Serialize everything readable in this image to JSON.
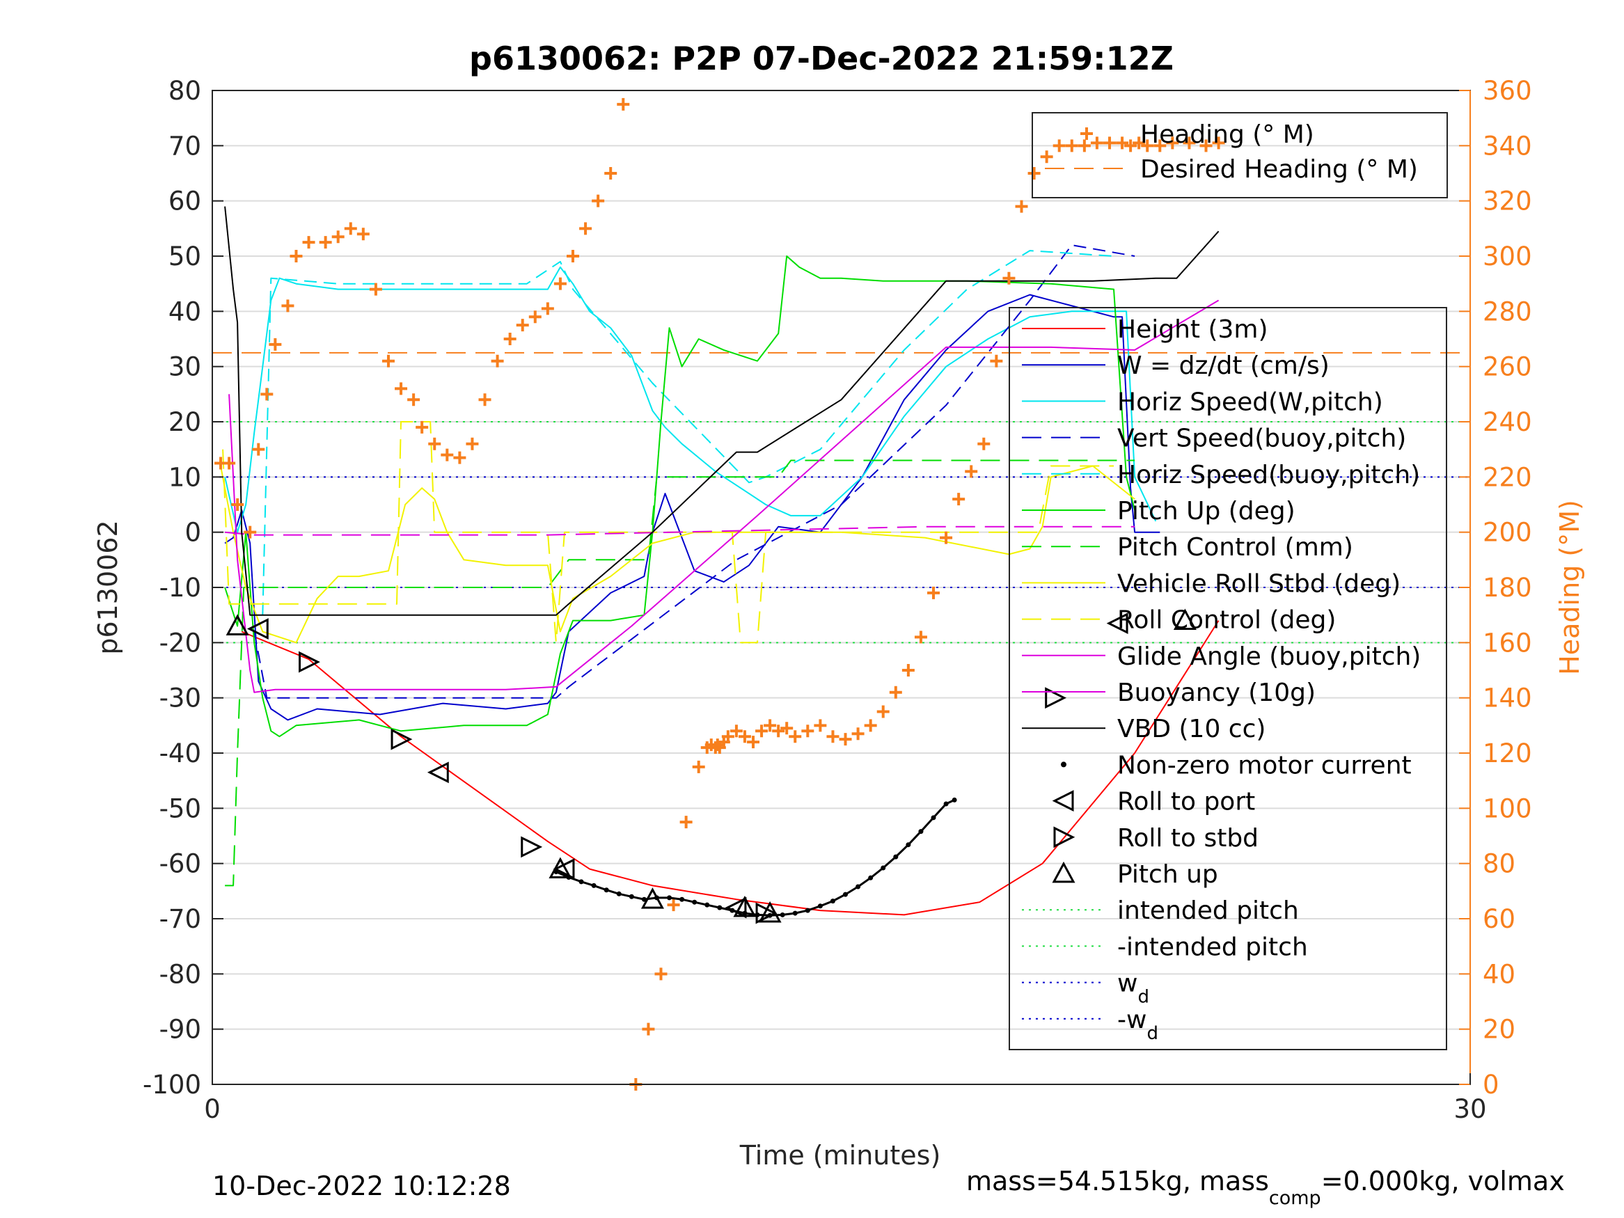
{
  "chart_data": {
    "type": "line",
    "title": "p6130062: P2P 07-Dec-2022 21:59:12Z",
    "xlabel": "Time (minutes)",
    "ylabel": "p6130062",
    "ylabel_right": "Heading (°M)",
    "xlim": [
      0,
      30
    ],
    "ylim": [
      -100,
      80
    ],
    "ylim_right": [
      0,
      360
    ],
    "x_ticks": [
      "0",
      "30"
    ],
    "y_ticks": [
      "80",
      "70",
      "60",
      "50",
      "40",
      "30",
      "20",
      "10",
      "0",
      "-10",
      "-20",
      "-30",
      "-40",
      "-50",
      "-60",
      "-70",
      "-80",
      "-90",
      "-100"
    ],
    "y_ticks_right": [
      "360",
      "340",
      "320",
      "300",
      "280",
      "260",
      "240",
      "220",
      "200",
      "180",
      "160",
      "140",
      "120",
      "100",
      "80",
      "60",
      "40",
      "20",
      "0"
    ],
    "grid": true,
    "footer_left": "10-Dec-2022 10:12:28",
    "footer_right": {
      "prefix": "mass=54.515kg, mass",
      "sub": "comp",
      "suffix": "=0.000kg, volmax"
    },
    "legend_top": [
      {
        "label": "Heading (° M)",
        "color": "#f77f1d",
        "style": "plus"
      },
      {
        "label": "Desired Heading (° M)",
        "color": "#f77f1d",
        "style": "dash"
      }
    ],
    "legend_main": [
      {
        "label": "Height (3m)",
        "color": "#ff0000",
        "style": "solid"
      },
      {
        "label": "W = dz/dt (cm/s)",
        "color": "#0000cc",
        "style": "solid"
      },
      {
        "label": "Horiz Speed(W,pitch)",
        "color": "#00e5ee",
        "style": "solid"
      },
      {
        "label": "Vert Speed(buoy,pitch)",
        "color": "#0000cc",
        "style": "dash"
      },
      {
        "label": "Horiz Speed(buoy,pitch)",
        "color": "#00e5ee",
        "style": "dash"
      },
      {
        "label": "Pitch Up (deg)",
        "color": "#00dd00",
        "style": "solid"
      },
      {
        "label": "Pitch Control (mm)",
        "color": "#00dd00",
        "style": "dash"
      },
      {
        "label": "Vehicle Roll Stbd (deg)",
        "color": "#f2f200",
        "style": "solid"
      },
      {
        "label": "Roll Control (deg)",
        "color": "#f2f200",
        "style": "dash"
      },
      {
        "label": "Glide Angle (buoy,pitch)",
        "color": "#dd00dd",
        "style": "solid"
      },
      {
        "label": "Buoyancy (10g)",
        "color": "#dd00dd",
        "style": "solid"
      },
      {
        "label": "VBD (10 cc)",
        "color": "#000000",
        "style": "solid"
      },
      {
        "label": "Non-zero motor current",
        "color": "#000000",
        "style": "dot"
      },
      {
        "label": "Roll to port",
        "color": "#000000",
        "style": "tri-left"
      },
      {
        "label": "Roll to stbd",
        "color": "#000000",
        "style": "tri-right"
      },
      {
        "label": "Pitch up",
        "color": "#000000",
        "style": "tri-up"
      },
      {
        "label": "intended pitch",
        "color": "#22dd44",
        "style": "dotted"
      },
      {
        "label": "-intended pitch",
        "color": "#22dd44",
        "style": "dotted"
      },
      {
        "label": "w",
        "sub": "d",
        "color": "#0000cc",
        "style": "dotted"
      },
      {
        "label": "-w",
        "sub": "d",
        "color": "#0000cc",
        "style": "dotted"
      }
    ],
    "reference_lines": [
      {
        "name": "intended pitch",
        "y": 20,
        "color": "#22dd44"
      },
      {
        "name": "-intended pitch",
        "y": -20,
        "color": "#22dd44"
      },
      {
        "name": "w_d",
        "y": 10,
        "color": "#0000cc"
      },
      {
        "name": "-w_d",
        "y": -10,
        "color": "#0000cc"
      }
    ],
    "series": [
      {
        "name": "Height (3m)",
        "color": "#ff0000",
        "dash": "",
        "x": [
          0.7,
          2.3,
          4.5,
          8.0,
          9.0,
          10.5,
          12.5,
          14.5,
          16.5,
          18.3,
          19.8,
          22.0,
          23.0,
          24.0
        ],
        "y": [
          -18,
          -23,
          -37,
          -56,
          -61,
          -64,
          -66.5,
          -68.5,
          -69.3,
          -67,
          -60,
          -40,
          -28,
          -16
        ]
      },
      {
        "name": "W = dz/dt (cm/s)",
        "color": "#0000cc",
        "dash": "",
        "x": [
          0.3,
          0.5,
          0.7,
          0.9,
          1.1,
          1.4,
          1.8,
          2.5,
          4.0,
          5.5,
          7.0,
          8.0,
          8.2,
          8.5,
          9.5,
          10.3,
          10.5,
          10.8,
          11.5,
          12.2,
          12.8,
          13.5,
          14.5,
          15.5,
          16.5,
          17.5,
          18.5,
          19.5,
          20.5,
          21.5,
          21.7,
          21.9,
          22.0,
          22.3,
          22.6
        ],
        "y": [
          -2,
          -1,
          4,
          -2,
          -27,
          -32,
          -34,
          -32,
          -33,
          -31,
          -32,
          -31,
          -29,
          -18,
          -11,
          -8,
          0,
          7,
          -7,
          -9,
          -6,
          1,
          0,
          10,
          24,
          33,
          40,
          43,
          41,
          39,
          39,
          8,
          0,
          0,
          0
        ]
      },
      {
        "name": "Horiz Speed(W,pitch)",
        "color": "#00e5ee",
        "dash": "",
        "x": [
          0.3,
          0.6,
          0.8,
          1.0,
          1.2,
          1.4,
          1.6,
          2.0,
          3.0,
          4.0,
          5.0,
          6.0,
          7.0,
          8.0,
          8.3,
          8.6,
          9.0,
          9.5,
          10.0,
          10.5,
          10.8,
          11.2,
          12.0,
          12.8,
          13.2,
          13.8,
          14.5,
          15.5,
          16.5,
          17.5,
          18.5,
          19.5,
          20.5,
          21.5,
          21.8,
          22.0,
          22.5
        ],
        "y": [
          10,
          0,
          5,
          18,
          30,
          42,
          46,
          45,
          44,
          44,
          44,
          44,
          44,
          44,
          48,
          45,
          40,
          37,
          32,
          22,
          19,
          16,
          11,
          7,
          5,
          3,
          3,
          10,
          21,
          30,
          35,
          39,
          40,
          40,
          40,
          10,
          2
        ]
      },
      {
        "name": "Vert Speed(buoy,pitch)",
        "color": "#0000cc",
        "dash": "18 10",
        "x": [
          1.0,
          1.3,
          8.2,
          8.5,
          12.5,
          15.0,
          17.5,
          19.5,
          20.5,
          22.0
        ],
        "y": [
          -18,
          -30,
          -30,
          -28,
          -5,
          5,
          23,
          42,
          52,
          50
        ]
      },
      {
        "name": "Horiz Speed(buoy,pitch)",
        "color": "#00e5ee",
        "dash": "18 10",
        "x": [
          1.2,
          1.4,
          3.0,
          7.5,
          8.3,
          8.6,
          10.5,
          12.8,
          13.2,
          14.5,
          16.5,
          18.0,
          19.5,
          21.5
        ],
        "y": [
          -15,
          46,
          45,
          45,
          49,
          44,
          27,
          9,
          10,
          15,
          33,
          44,
          51,
          50
        ]
      },
      {
        "name": "Pitch Up (deg)",
        "color": "#00dd00",
        "dash": "",
        "x": [
          0.3,
          0.6,
          0.8,
          1.0,
          1.2,
          1.4,
          1.6,
          2.0,
          3.5,
          4.5,
          6.0,
          7.5,
          8.0,
          8.3,
          8.6,
          9.5,
          10.3,
          10.5,
          10.7,
          10.9,
          11.2,
          11.6,
          12.2,
          13.0,
          13.5,
          13.7,
          14.0,
          14.5,
          15.0,
          16.0,
          18.0,
          20.0,
          21.5,
          21.8,
          22.0
        ],
        "y": [
          -10,
          -17,
          0,
          -20,
          -30,
          -36,
          -37,
          -35,
          -34,
          -36,
          -35,
          -35,
          -33,
          -22,
          -16,
          -16,
          -15,
          0,
          20,
          37,
          30,
          35,
          33,
          31,
          36,
          50,
          48,
          46,
          46,
          45.5,
          45.5,
          45,
          44,
          10,
          4
        ]
      },
      {
        "name": "Pitch Control (mm)",
        "color": "#00dd00",
        "dash": "28 14",
        "x": [
          0.3,
          0.5,
          0.6,
          0.75,
          0.9,
          1.2,
          8.0,
          8.5,
          10.4,
          10.6,
          13.5,
          13.8,
          22.0
        ],
        "y": [
          -64,
          -64,
          -40,
          -10,
          -10,
          -10,
          -10,
          -5,
          -5,
          10,
          10,
          13,
          13
        ]
      },
      {
        "name": "Vehicle Roll Stbd (deg)",
        "color": "#f2f200",
        "dash": "",
        "x": [
          0.2,
          0.5,
          0.8,
          1.2,
          2.0,
          2.5,
          3.0,
          3.5,
          4.2,
          4.6,
          5.0,
          5.3,
          5.6,
          6.0,
          7.0,
          8.0,
          8.3,
          8.6,
          9.5,
          10.5,
          11.5,
          12.5,
          13.5,
          14.0,
          15.0,
          17.0,
          19.0,
          19.5,
          19.8,
          20.0,
          21.0,
          22.0
        ],
        "y": [
          12,
          0,
          -10,
          -18,
          -20,
          -12,
          -8,
          -8,
          -7,
          5,
          8,
          6,
          0,
          -5,
          -6,
          -6,
          -18,
          -12,
          -8,
          -2,
          0,
          0,
          0,
          0,
          0,
          -1,
          -4,
          -3,
          1,
          10,
          12,
          6
        ]
      },
      {
        "name": "Roll Control (deg)",
        "color": "#f2f200",
        "dash": "28 14",
        "x": [
          0.25,
          0.4,
          0.9,
          1.5,
          2.0,
          2.2,
          3.0,
          4.4,
          4.5,
          5.2,
          5.3,
          6.0,
          8.0,
          8.2,
          8.4,
          11.6,
          12.4,
          12.6,
          13.0,
          13.2,
          14.0,
          19.7,
          20.0,
          21.5
        ],
        "y": [
          15,
          -13,
          -13,
          -13,
          -13,
          -13,
          -13,
          -13,
          20,
          20,
          0,
          0,
          0,
          -20,
          0,
          0,
          0,
          -20,
          -20,
          0,
          0,
          0,
          12,
          12
        ]
      },
      {
        "name": "Glide Angle (buoy,pitch)",
        "color": "#dd00dd",
        "dash": "28 14",
        "x": [
          0.3,
          1.0,
          4.0,
          8.0,
          14.0,
          17.0,
          21.0,
          22.0
        ],
        "y": [
          0,
          -0.5,
          -0.5,
          -0.5,
          0.5,
          1,
          1,
          1
        ]
      },
      {
        "name": "Buoyancy (10g)",
        "color": "#dd00dd",
        "dash": "",
        "x": [
          0.4,
          0.6,
          0.9,
          1.0,
          1.5,
          3.0,
          5.0,
          7.0,
          8.2,
          10.0,
          13.0,
          17.5,
          20.0,
          22.0,
          24.0
        ],
        "y": [
          25,
          -5,
          -25,
          -29,
          -28.5,
          -28.5,
          -28.5,
          -28.5,
          -28,
          -17,
          3,
          33.5,
          33.5,
          33,
          42
        ]
      },
      {
        "name": "VBD (10 cc)",
        "color": "#000000",
        "dash": "",
        "x": [
          0.3,
          0.5,
          0.6,
          0.7,
          0.9,
          1.1,
          3.0,
          6.0,
          8.2,
          8.5,
          10.5,
          12.5,
          13.0,
          15.0,
          17.5,
          21.0,
          22.5,
          23.0,
          24.0
        ],
        "y": [
          59,
          44,
          38,
          0,
          -15,
          -15,
          -15,
          -15,
          -15,
          -13,
          0,
          14.5,
          14.5,
          24,
          45.5,
          45.5,
          46,
          46,
          54.5
        ]
      }
    ],
    "heading": {
      "name": "Heading (° M)",
      "color": "#f77f1d",
      "x": [
        0.2,
        0.4,
        0.6,
        0.9,
        1.1,
        1.3,
        1.5,
        1.8,
        2.0,
        2.3,
        2.7,
        3.0,
        3.3,
        3.6,
        3.9,
        4.2,
        4.5,
        4.8,
        5.0,
        5.3,
        5.6,
        5.9,
        6.2,
        6.5,
        6.8,
        7.1,
        7.4,
        7.7,
        8.0,
        8.3,
        8.6,
        8.9,
        9.2,
        9.5,
        9.8,
        10.1,
        10.4,
        10.7,
        11.0,
        11.3,
        11.6,
        11.8,
        11.9,
        12.0,
        12.05,
        12.1,
        12.2,
        12.3,
        12.5,
        12.7,
        12.9,
        13.1,
        13.3,
        13.5,
        13.7,
        13.9,
        14.2,
        14.5,
        14.8,
        15.1,
        15.4,
        15.7,
        16.0,
        16.3,
        16.6,
        16.9,
        17.2,
        17.5,
        17.8,
        18.1,
        18.4,
        18.7,
        19.0,
        19.3,
        19.6,
        19.9,
        20.2,
        20.5,
        20.8,
        21.1,
        21.4,
        21.7,
        21.9,
        22.1,
        22.3,
        22.6,
        22.9,
        23.3,
        23.7,
        24.0
      ],
      "y": [
        225,
        225,
        210,
        200,
        230,
        250,
        268,
        282,
        300,
        305,
        305,
        307,
        310,
        308,
        288,
        262,
        252,
        248,
        238,
        232,
        228,
        227,
        232,
        248,
        262,
        270,
        275,
        278,
        281,
        290,
        300,
        310,
        320,
        330,
        355,
        0,
        20,
        40,
        65,
        95,
        115,
        122,
        123,
        122,
        123,
        122,
        124,
        126,
        128,
        126,
        124,
        128,
        130,
        128,
        129,
        126,
        128,
        130,
        126,
        125,
        127,
        130,
        135,
        142,
        150,
        162,
        178,
        198,
        212,
        222,
        232,
        262,
        292,
        318,
        330,
        336,
        340,
        340,
        340,
        341,
        341,
        341,
        340,
        341,
        340,
        340,
        341,
        341,
        340,
        341
      ]
    },
    "desired_heading": {
      "name": "Desired Heading (° M)",
      "color": "#f77f1d",
      "y": 265
    },
    "motor_current_points": {
      "name": "Non-zero motor current",
      "x": [
        8.2,
        8.5,
        8.8,
        9.1,
        9.4,
        9.7,
        10.0,
        10.3,
        10.6,
        10.9,
        11.2,
        11.5,
        11.8,
        12.1,
        12.4,
        12.7,
        13.0,
        13.3,
        13.6,
        13.9,
        14.2,
        14.5,
        14.8,
        15.1,
        15.4,
        15.7,
        16.0,
        16.3,
        16.6,
        16.9,
        17.2,
        17.5,
        17.7
      ],
      "y": [
        -61.5,
        -62.5,
        -63.3,
        -64,
        -64.8,
        -65.5,
        -66,
        -66.5,
        -66.2,
        -66.2,
        -66.5,
        -67,
        -67.5,
        -68,
        -68.5,
        -69,
        -69.3,
        -69.4,
        -69.3,
        -69,
        -68.5,
        -67.7,
        -66.8,
        -65.6,
        -64.2,
        -62.6,
        -60.8,
        -58.8,
        -56.6,
        -54.2,
        -51.7,
        -49.2,
        -48.5
      ]
    },
    "roll_to_port": {
      "x": [
        1.1,
        5.4,
        8.4,
        12.5,
        21.6
      ],
      "y": [
        -17.5,
        -43.5,
        -61,
        -68,
        -16.5
      ]
    },
    "roll_to_stbd": {
      "x": [
        2.3,
        4.5,
        7.6,
        13.2,
        20.1
      ],
      "y": [
        -23.5,
        -37.5,
        -57,
        -69,
        -30
      ]
    },
    "pitch_up": {
      "x": [
        0.6,
        8.3,
        10.5,
        12.7,
        13.3,
        23.2
      ],
      "y": [
        -17,
        -61,
        -66.5,
        -68,
        -69,
        -16
      ]
    }
  }
}
